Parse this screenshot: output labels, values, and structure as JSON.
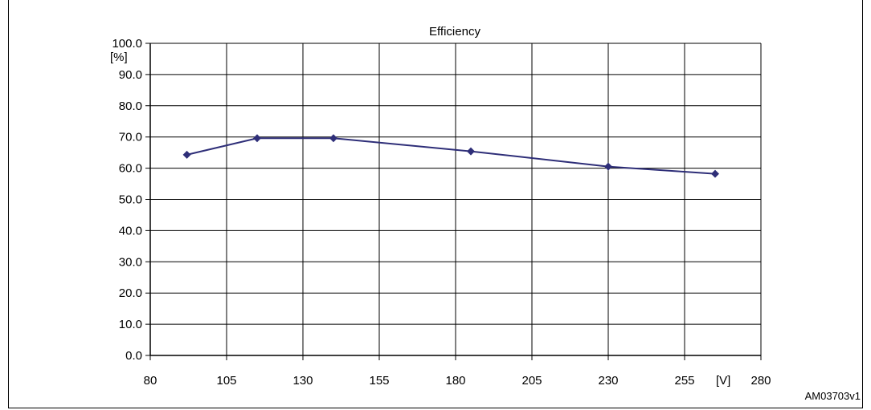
{
  "chart_data": {
    "type": "line",
    "title": "Efficiency",
    "x": [
      92,
      115,
      140,
      185,
      230,
      265
    ],
    "series": [
      {
        "values": [
          64.3,
          69.6,
          69.6,
          65.4,
          60.5,
          58.2
        ]
      }
    ],
    "xlim": [
      80,
      280
    ],
    "ylim": [
      0,
      100
    ],
    "xticks": [
      "80",
      "105",
      "130",
      "155",
      "180",
      "205",
      "230",
      "255",
      "280"
    ],
    "yticks": [
      "0.0",
      "10.0",
      "20.0",
      "30.0",
      "40.0",
      "50.0",
      "60.0",
      "70.0",
      "80.0",
      "90.0",
      "100.0"
    ],
    "xunit": "[V]",
    "yunit": "[%]",
    "grid": true,
    "line_color": "#2e2e78",
    "marker": "diamond"
  },
  "figure_code": "AM03703v1"
}
